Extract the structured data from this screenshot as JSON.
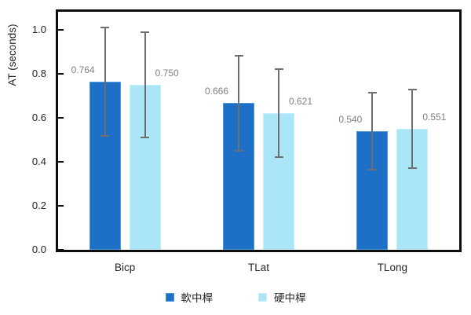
{
  "chart_data": {
    "type": "bar",
    "title": "",
    "ylabel": "AT (seconds)",
    "xlabel": "",
    "categories": [
      "Bicp",
      "TLat",
      "TLong"
    ],
    "series": [
      {
        "name": "軟中桿",
        "color": "#1D70C6",
        "border_color": "#4E97DC",
        "values": [
          0.764,
          0.666,
          0.54
        ],
        "value_labels": [
          "0.764",
          "0.666",
          "0.540"
        ],
        "errors": [
          0.245,
          0.215,
          0.175
        ],
        "label_side": "left"
      },
      {
        "name": "硬中桿",
        "color": "#ABE5F8",
        "border_color": "#C6EEFB",
        "values": [
          0.75,
          0.621,
          0.551
        ],
        "value_labels": [
          "0.750",
          "0.621",
          "0.551"
        ],
        "errors": [
          0.24,
          0.2,
          0.178
        ],
        "label_side": "right"
      }
    ],
    "ylim": [
      0,
      1.082
    ],
    "yticks": [
      0,
      0.2,
      0.4,
      0.6,
      0.8,
      1.0
    ],
    "ytick_labels": [
      "0.0",
      "0.2",
      "0.4",
      "0.6",
      "0.8",
      "1.0"
    ],
    "grid": false,
    "legend_position": "bottom",
    "error_bar_color": "#6F6F6F",
    "data_label_color": "#7F7F7F",
    "axis_color": "#0d0d0d"
  }
}
